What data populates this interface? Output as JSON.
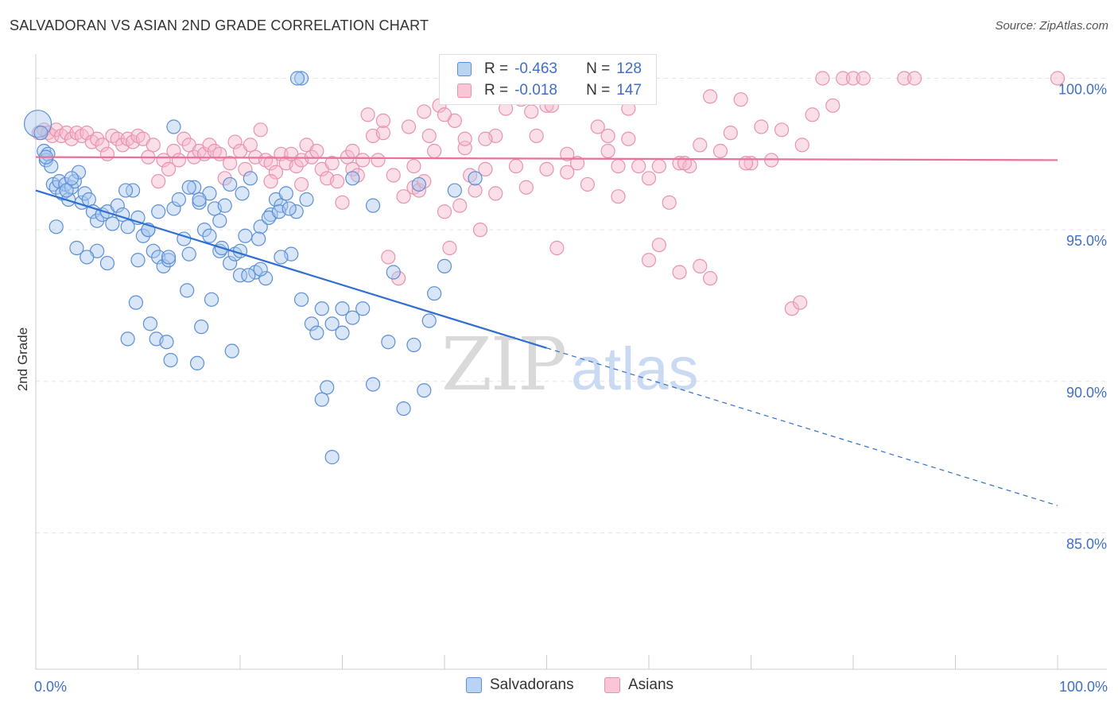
{
  "title": "SALVADORAN VS ASIAN 2ND GRADE CORRELATION CHART",
  "source": "Source: ZipAtlas.com",
  "watermark": {
    "zip": "ZIP",
    "atlas": "atlas"
  },
  "legend_top": {
    "rows": [
      {
        "r_label": "R =",
        "r_value": "-0.463",
        "n_label": "N =",
        "n_value": "128"
      },
      {
        "r_label": "R =",
        "r_value": "-0.018",
        "n_label": "N =",
        "n_value": "147"
      }
    ]
  },
  "colors": {
    "blue_fill": "#a8c8f0",
    "blue_stroke": "#5b8fd6",
    "blue_line": "#2e6fcf",
    "pink_fill": "#f6b8cb",
    "pink_stroke": "#e893ad",
    "pink_line": "#e8729a",
    "tick_label": "#3f6fc4",
    "grid": "#e4e4e4"
  },
  "chart_data": {
    "type": "scatter",
    "xlabel": "",
    "ylabel": "2nd Grade",
    "xlim": [
      0,
      100
    ],
    "ylim": [
      80.5,
      100.8
    ],
    "x_tick_labels": [
      "0.0%",
      "100.0%"
    ],
    "y_ticks": [
      85,
      90,
      95,
      100
    ],
    "y_tick_labels": [
      "85.0%",
      "90.0%",
      "95.0%",
      "100.0%"
    ],
    "grid": true,
    "legend_position": "bottom-center",
    "series": [
      {
        "name": "Salvadorans",
        "color": "#a8c8f0",
        "trend": {
          "x0": 0,
          "y0": 96.3,
          "x_solid_end": 50,
          "y_solid_end": 91.1,
          "x1": 100,
          "y1": 85.9
        },
        "points": [
          [
            0.2,
            98.5
          ],
          [
            0.5,
            98.2
          ],
          [
            0.8,
            97.6
          ],
          [
            1.0,
            97.3
          ],
          [
            1.2,
            97.5
          ],
          [
            1.5,
            97.1
          ],
          [
            1.7,
            96.5
          ],
          [
            2.0,
            96.4
          ],
          [
            2.3,
            96.6
          ],
          [
            2.6,
            96.2
          ],
          [
            2.9,
            96.5
          ],
          [
            3.2,
            96.0
          ],
          [
            3.5,
            96.4
          ],
          [
            3.8,
            96.6
          ],
          [
            4.2,
            96.9
          ],
          [
            4.5,
            95.9
          ],
          [
            4.8,
            96.2
          ],
          [
            5.2,
            96.0
          ],
          [
            5.6,
            95.6
          ],
          [
            6.0,
            95.3
          ],
          [
            6.5,
            95.5
          ],
          [
            7.0,
            95.6
          ],
          [
            7.5,
            95.2
          ],
          [
            8.0,
            95.8
          ],
          [
            8.5,
            95.5
          ],
          [
            9.0,
            95.1
          ],
          [
            9.5,
            96.3
          ],
          [
            10.0,
            95.4
          ],
          [
            10.5,
            94.8
          ],
          [
            11.0,
            95.0
          ],
          [
            11.5,
            94.3
          ],
          [
            12.0,
            94.1
          ],
          [
            12.5,
            93.8
          ],
          [
            13.0,
            94.0
          ],
          [
            13.5,
            95.7
          ],
          [
            14.0,
            96.0
          ],
          [
            14.5,
            94.7
          ],
          [
            15.0,
            94.2
          ],
          [
            15.5,
            96.4
          ],
          [
            16.0,
            95.9
          ],
          [
            16.5,
            95.0
          ],
          [
            17.0,
            94.8
          ],
          [
            17.5,
            95.7
          ],
          [
            18.0,
            94.3
          ],
          [
            18.5,
            95.8
          ],
          [
            19.0,
            93.9
          ],
          [
            19.5,
            94.2
          ],
          [
            20.0,
            93.5
          ],
          [
            20.5,
            94.8
          ],
          [
            21.0,
            96.7
          ],
          [
            21.5,
            93.6
          ],
          [
            22.0,
            95.1
          ],
          [
            22.5,
            93.4
          ],
          [
            23.0,
            95.5
          ],
          [
            23.5,
            96.0
          ],
          [
            24.0,
            95.8
          ],
          [
            24.5,
            96.2
          ],
          [
            25.0,
            94.2
          ],
          [
            25.5,
            95.6
          ],
          [
            26.0,
            92.7
          ],
          [
            26.5,
            96.0
          ],
          [
            27.0,
            91.9
          ],
          [
            27.5,
            91.6
          ],
          [
            28.0,
            92.4
          ],
          [
            28.5,
            89.8
          ],
          [
            29.0,
            91.9
          ],
          [
            30.0,
            91.6
          ],
          [
            31.0,
            96.7
          ],
          [
            32.0,
            92.4
          ],
          [
            33.0,
            95.8
          ],
          [
            34.5,
            91.3
          ],
          [
            36.0,
            89.1
          ],
          [
            37.0,
            91.2
          ],
          [
            38.0,
            89.7
          ],
          [
            39.0,
            92.9
          ],
          [
            40.0,
            93.8
          ],
          [
            43.0,
            96.7
          ],
          [
            3.0,
            96.3
          ],
          [
            6.0,
            94.3
          ],
          [
            7.0,
            93.9
          ],
          [
            8.8,
            96.3
          ],
          [
            9.8,
            92.6
          ],
          [
            11.2,
            91.9
          ],
          [
            11.8,
            91.4
          ],
          [
            12.8,
            91.3
          ],
          [
            13.2,
            90.7
          ],
          [
            14.8,
            93.0
          ],
          [
            15.8,
            90.6
          ],
          [
            16.2,
            91.8
          ],
          [
            17.2,
            92.7
          ],
          [
            18.2,
            94.4
          ],
          [
            19.2,
            91.0
          ],
          [
            20.2,
            96.2
          ],
          [
            20.8,
            93.5
          ],
          [
            21.8,
            94.7
          ],
          [
            22.8,
            95.4
          ],
          [
            23.8,
            95.6
          ],
          [
            24.8,
            95.7
          ],
          [
            9.0,
            91.4
          ],
          [
            10.0,
            94.0
          ],
          [
            11.0,
            95.0
          ],
          [
            12.0,
            95.6
          ],
          [
            13.0,
            94.1
          ],
          [
            15.0,
            96.4
          ],
          [
            17.0,
            96.2
          ],
          [
            19.0,
            96.5
          ],
          [
            26.0,
            100.0
          ],
          [
            28.0,
            89.4
          ],
          [
            29.0,
            87.5
          ],
          [
            30.0,
            92.4
          ],
          [
            31.0,
            92.1
          ],
          [
            33.0,
            89.9
          ],
          [
            35.0,
            93.6
          ],
          [
            37.5,
            96.5
          ],
          [
            38.5,
            92.0
          ],
          [
            41.0,
            96.3
          ],
          [
            2.0,
            95.1
          ],
          [
            4.0,
            94.4
          ],
          [
            5.0,
            94.1
          ],
          [
            16.0,
            96.0
          ],
          [
            18.0,
            95.3
          ],
          [
            20.0,
            94.3
          ],
          [
            22.0,
            93.7
          ],
          [
            24.0,
            94.1
          ],
          [
            13.5,
            98.4
          ],
          [
            25.6,
            100.0
          ],
          [
            1.0,
            97.4
          ],
          [
            3.5,
            96.7
          ]
        ]
      },
      {
        "name": "Asians",
        "color": "#f6b8cb",
        "trend": {
          "x0": 0,
          "y0": 97.4,
          "x1": 100,
          "y1": 97.3
        },
        "points": [
          [
            0.3,
            98.2
          ],
          [
            0.8,
            98.3
          ],
          [
            1.2,
            98.2
          ],
          [
            1.6,
            98.1
          ],
          [
            2.0,
            98.3
          ],
          [
            2.5,
            98.1
          ],
          [
            3.0,
            98.2
          ],
          [
            3.5,
            98.0
          ],
          [
            4.0,
            98.2
          ],
          [
            4.5,
            98.1
          ],
          [
            5.0,
            98.2
          ],
          [
            5.5,
            97.9
          ],
          [
            6.0,
            98.0
          ],
          [
            6.5,
            97.8
          ],
          [
            7.0,
            97.5
          ],
          [
            7.5,
            98.1
          ],
          [
            8.0,
            98.0
          ],
          [
            8.5,
            97.8
          ],
          [
            9.0,
            98.0
          ],
          [
            9.5,
            97.9
          ],
          [
            10.0,
            98.1
          ],
          [
            10.5,
            98.0
          ],
          [
            11.0,
            97.4
          ],
          [
            11.5,
            97.8
          ],
          [
            12.0,
            96.6
          ],
          [
            12.5,
            97.3
          ],
          [
            13.0,
            97.0
          ],
          [
            13.5,
            97.6
          ],
          [
            14.0,
            97.3
          ],
          [
            14.5,
            98.0
          ],
          [
            15.0,
            97.8
          ],
          [
            15.5,
            97.4
          ],
          [
            16.0,
            97.6
          ],
          [
            16.5,
            97.5
          ],
          [
            17.0,
            97.8
          ],
          [
            17.5,
            97.6
          ],
          [
            18.0,
            97.5
          ],
          [
            18.5,
            96.7
          ],
          [
            19.0,
            97.2
          ],
          [
            19.5,
            97.9
          ],
          [
            20.0,
            97.6
          ],
          [
            20.5,
            97.0
          ],
          [
            21.0,
            97.8
          ],
          [
            21.5,
            97.4
          ],
          [
            22.0,
            98.3
          ],
          [
            22.5,
            97.3
          ],
          [
            23.0,
            97.2
          ],
          [
            23.5,
            96.9
          ],
          [
            24.0,
            97.5
          ],
          [
            24.5,
            97.2
          ],
          [
            25.0,
            97.5
          ],
          [
            25.5,
            97.1
          ],
          [
            26.0,
            97.3
          ],
          [
            26.5,
            97.8
          ],
          [
            27.0,
            97.4
          ],
          [
            27.5,
            97.6
          ],
          [
            28.0,
            97.0
          ],
          [
            28.5,
            96.7
          ],
          [
            29.0,
            97.2
          ],
          [
            29.5,
            96.6
          ],
          [
            30.0,
            95.9
          ],
          [
            30.5,
            97.4
          ],
          [
            31.0,
            97.0
          ],
          [
            31.5,
            96.8
          ],
          [
            32.0,
            97.3
          ],
          [
            32.5,
            98.8
          ],
          [
            33.0,
            98.1
          ],
          [
            33.5,
            97.3
          ],
          [
            34.0,
            98.2
          ],
          [
            34.5,
            94.1
          ],
          [
            35.0,
            96.8
          ],
          [
            35.5,
            93.4
          ],
          [
            36.0,
            96.1
          ],
          [
            36.5,
            98.4
          ],
          [
            37.0,
            96.4
          ],
          [
            37.5,
            96.3
          ],
          [
            38.0,
            96.6
          ],
          [
            38.5,
            98.1
          ],
          [
            39.0,
            97.6
          ],
          [
            39.5,
            99.1
          ],
          [
            40.0,
            95.6
          ],
          [
            40.5,
            94.4
          ],
          [
            41.0,
            98.6
          ],
          [
            41.5,
            95.8
          ],
          [
            42.0,
            97.7
          ],
          [
            42.5,
            96.8
          ],
          [
            43.0,
            96.3
          ],
          [
            43.5,
            95.0
          ],
          [
            44.0,
            97.0
          ],
          [
            45.0,
            98.1
          ],
          [
            46.0,
            99.0
          ],
          [
            47.0,
            97.1
          ],
          [
            48.0,
            96.4
          ],
          [
            48.5,
            98.9
          ],
          [
            49.0,
            98.1
          ],
          [
            50.0,
            97.0
          ],
          [
            51.0,
            94.4
          ],
          [
            52.0,
            96.9
          ],
          [
            53.0,
            97.2
          ],
          [
            54.0,
            96.5
          ],
          [
            55.0,
            98.4
          ],
          [
            56.0,
            98.1
          ],
          [
            57.0,
            96.1
          ],
          [
            58.0,
            99.0
          ],
          [
            59.0,
            97.1
          ],
          [
            60.0,
            96.7
          ],
          [
            61.0,
            97.1
          ],
          [
            62.0,
            95.9
          ],
          [
            63.0,
            97.2
          ],
          [
            64.0,
            97.1
          ],
          [
            65.0,
            97.8
          ],
          [
            66.0,
            93.4
          ],
          [
            67.0,
            97.6
          ],
          [
            68.0,
            98.2
          ],
          [
            69.0,
            99.3
          ],
          [
            70.0,
            97.2
          ],
          [
            71.0,
            98.4
          ],
          [
            73.0,
            98.3
          ],
          [
            75.0,
            97.8
          ],
          [
            76.0,
            98.8
          ],
          [
            77.0,
            100.0
          ],
          [
            78.0,
            99.1
          ],
          [
            79.0,
            100.0
          ],
          [
            80.0,
            100.0
          ],
          [
            81.0,
            100.0
          ],
          [
            85.0,
            100.0
          ],
          [
            86.0,
            100.0
          ],
          [
            100.0,
            100.0
          ],
          [
            74.0,
            92.4
          ],
          [
            74.8,
            92.6
          ],
          [
            65.0,
            93.8
          ],
          [
            63.0,
            93.6
          ],
          [
            60.0,
            94.0
          ],
          [
            61.0,
            94.5
          ],
          [
            52.0,
            97.5
          ],
          [
            72.0,
            97.3
          ],
          [
            37.0,
            97.1
          ],
          [
            44.0,
            98.0
          ],
          [
            56.0,
            97.6
          ],
          [
            57.0,
            97.1
          ],
          [
            66.0,
            99.4
          ],
          [
            38.0,
            98.9
          ],
          [
            47.5,
            99.3
          ],
          [
            50.0,
            99.1
          ],
          [
            23.0,
            96.6
          ],
          [
            26.0,
            96.5
          ],
          [
            31.0,
            97.6
          ],
          [
            34.0,
            98.6
          ],
          [
            40.0,
            98.8
          ],
          [
            42.0,
            98.0
          ],
          [
            58.0,
            98.0
          ],
          [
            63.5,
            97.2
          ],
          [
            69.5,
            97.2
          ],
          [
            45.0,
            96.2
          ],
          [
            50.5,
            99.1
          ]
        ]
      }
    ]
  },
  "bottom_legend": {
    "items": [
      "Salvadorans",
      "Asians"
    ]
  }
}
